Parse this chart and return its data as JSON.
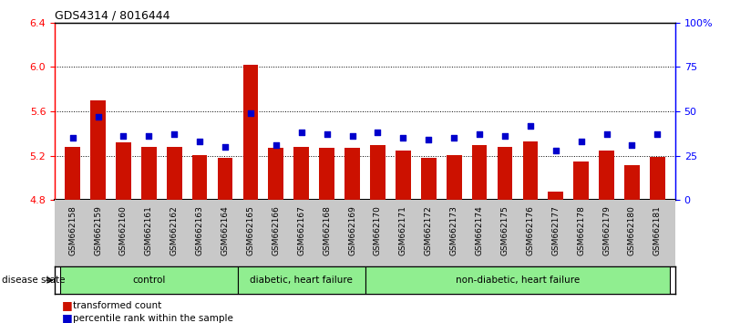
{
  "title": "GDS4314 / 8016444",
  "samples": [
    "GSM662158",
    "GSM662159",
    "GSM662160",
    "GSM662161",
    "GSM662162",
    "GSM662163",
    "GSM662164",
    "GSM662165",
    "GSM662166",
    "GSM662167",
    "GSM662168",
    "GSM662169",
    "GSM662170",
    "GSM662171",
    "GSM662172",
    "GSM662173",
    "GSM662174",
    "GSM662175",
    "GSM662176",
    "GSM662177",
    "GSM662178",
    "GSM662179",
    "GSM662180",
    "GSM662181"
  ],
  "red_values": [
    5.28,
    5.7,
    5.32,
    5.28,
    5.28,
    5.21,
    5.18,
    6.02,
    5.27,
    5.28,
    5.27,
    5.27,
    5.3,
    5.25,
    5.18,
    5.21,
    5.3,
    5.28,
    5.33,
    4.88,
    5.15,
    5.25,
    5.12,
    5.19
  ],
  "blue_values": [
    35,
    47,
    36,
    36,
    37,
    33,
    30,
    49,
    31,
    38,
    37,
    36,
    38,
    35,
    34,
    35,
    37,
    36,
    42,
    28,
    33,
    37,
    31,
    37
  ],
  "group_boundaries": [
    0,
    7,
    12,
    24
  ],
  "group_labels": [
    "control",
    "diabetic, heart failure",
    "non-diabetic, heart failure"
  ],
  "ylim_left": [
    4.8,
    6.4
  ],
  "ylim_right": [
    0,
    100
  ],
  "yticks_left": [
    4.8,
    5.2,
    5.6,
    6.0,
    6.4
  ],
  "yticks_right": [
    0,
    25,
    50,
    75,
    100
  ],
  "ytick_labels_right": [
    "0",
    "25",
    "50",
    "75",
    "100%"
  ],
  "dotted_yticks": [
    5.2,
    5.6,
    6.0
  ],
  "bar_color": "#cc1100",
  "dot_color": "#0000cc",
  "xtick_bg_color": "#c8c8c8",
  "plot_bg_color": "#ffffff",
  "green_color": "#90ee90",
  "bar_width": 0.6
}
